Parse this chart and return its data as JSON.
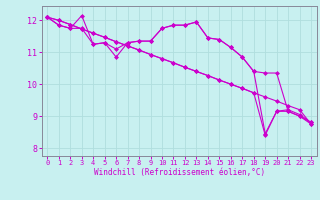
{
  "xlabel": "Windchill (Refroidissement éolien,°C)",
  "background_color": "#c8f0f0",
  "grid_color": "#b0dede",
  "line_color": "#cc00cc",
  "spine_color": "#888899",
  "xlim": [
    -0.5,
    23.5
  ],
  "ylim": [
    7.75,
    12.45
  ],
  "yticks": [
    8,
    9,
    10,
    11,
    12
  ],
  "xticks": [
    0,
    1,
    2,
    3,
    4,
    5,
    6,
    7,
    8,
    9,
    10,
    11,
    12,
    13,
    14,
    15,
    16,
    17,
    18,
    19,
    20,
    21,
    22,
    23
  ],
  "series": [
    {
      "x": [
        0,
        1,
        2,
        3,
        4,
        5,
        6,
        7,
        8,
        9,
        10,
        11,
        12,
        13,
        14,
        15,
        16,
        17,
        18,
        19,
        20,
        21,
        22,
        23
      ],
      "y": [
        12.1,
        12.0,
        11.87,
        11.73,
        11.6,
        11.47,
        11.33,
        11.2,
        11.07,
        10.93,
        10.8,
        10.67,
        10.53,
        10.4,
        10.27,
        10.13,
        10.0,
        9.87,
        9.73,
        9.6,
        9.47,
        9.33,
        9.2,
        8.75
      ]
    },
    {
      "x": [
        0,
        1,
        2,
        3,
        4,
        5,
        6,
        7,
        8,
        9,
        10,
        11,
        12,
        13,
        14,
        15,
        16,
        17,
        18,
        19,
        20,
        21,
        22,
        23
      ],
      "y": [
        12.1,
        11.85,
        11.75,
        11.75,
        11.25,
        11.3,
        11.1,
        11.3,
        11.35,
        11.35,
        11.75,
        11.85,
        11.85,
        11.95,
        11.45,
        11.4,
        11.15,
        10.85,
        10.4,
        10.35,
        10.35,
        9.15,
        9.0,
        8.8
      ]
    },
    {
      "x": [
        0,
        1,
        2,
        3,
        4,
        5,
        6,
        7,
        8,
        9,
        10,
        11,
        12,
        13,
        14,
        15,
        16,
        17,
        18,
        19,
        20,
        21,
        22,
        23
      ],
      "y": [
        12.1,
        11.85,
        11.75,
        12.15,
        11.25,
        11.3,
        10.85,
        11.3,
        11.35,
        11.35,
        11.75,
        11.85,
        11.85,
        11.95,
        11.45,
        11.4,
        11.15,
        10.85,
        10.4,
        8.45,
        9.15,
        9.2,
        9.05,
        8.8
      ]
    },
    {
      "x": [
        0,
        1,
        2,
        3,
        4,
        5,
        6,
        7,
        8,
        9,
        10,
        11,
        12,
        13,
        14,
        15,
        16,
        17,
        18,
        19,
        20,
        21,
        22,
        23
      ],
      "y": [
        12.1,
        12.0,
        11.87,
        11.73,
        11.6,
        11.47,
        11.33,
        11.2,
        11.07,
        10.93,
        10.8,
        10.67,
        10.53,
        10.4,
        10.27,
        10.13,
        10.0,
        9.87,
        9.73,
        8.4,
        9.15,
        9.15,
        9.0,
        8.75
      ]
    }
  ]
}
